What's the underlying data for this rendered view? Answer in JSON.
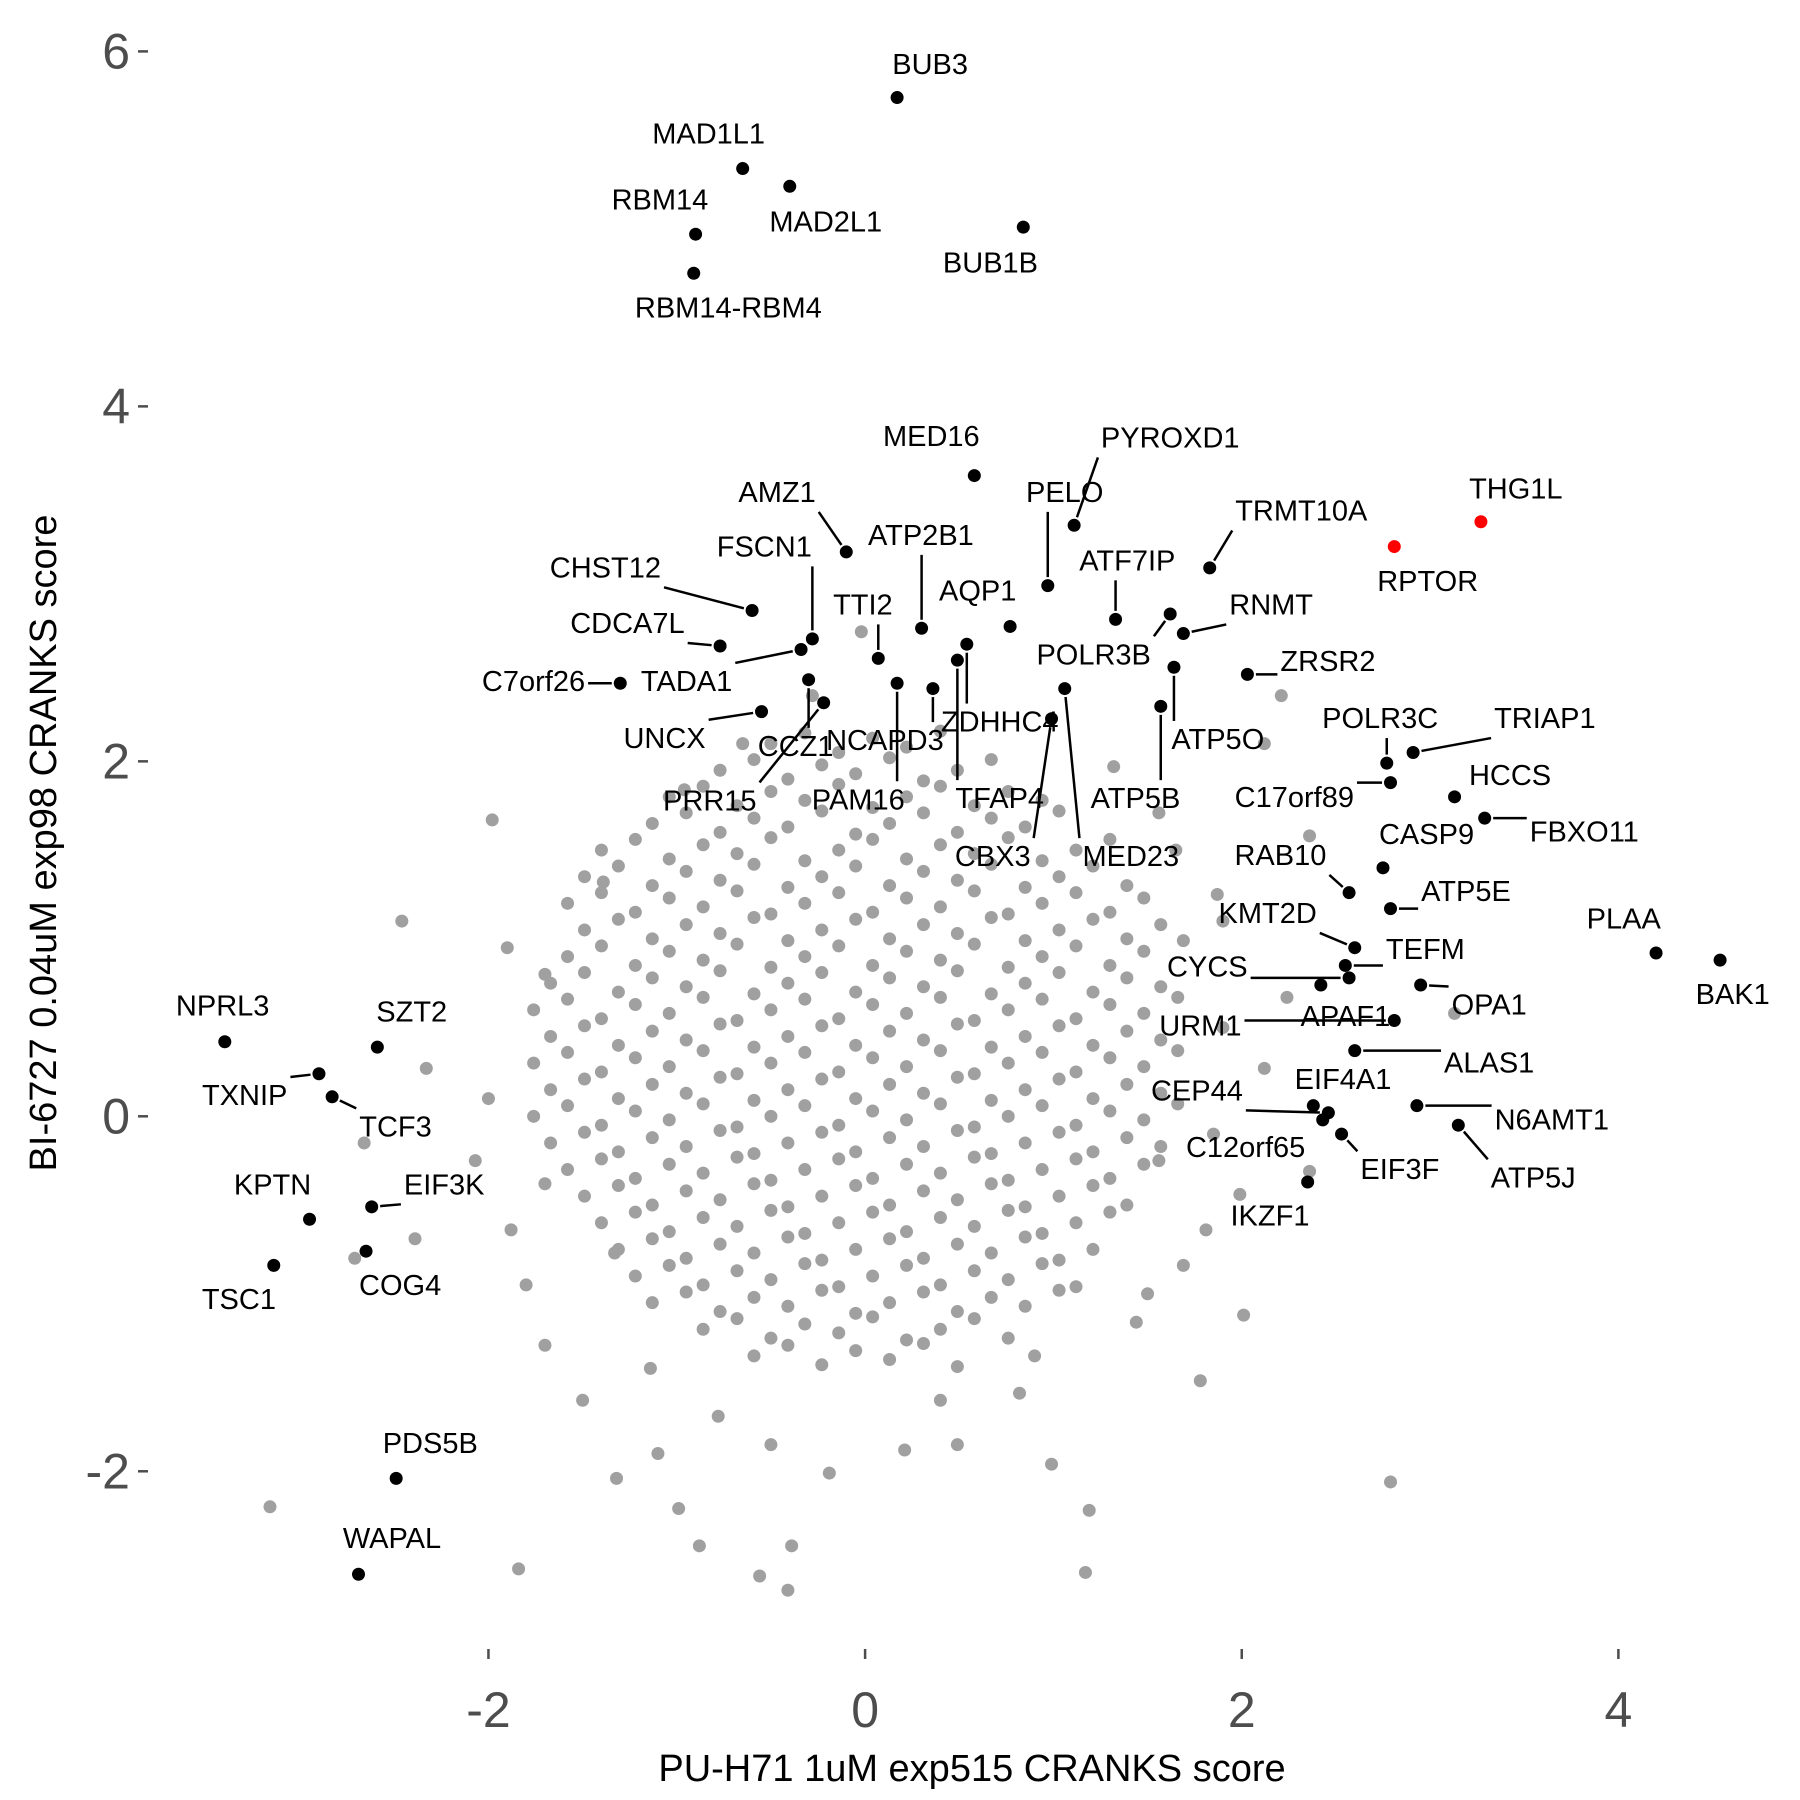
{
  "chart_data": {
    "type": "scatter",
    "x_label": "PU-H71 1uM exp515 CRANKS score",
    "y_label": "BI-6727 0.04uM exp98 CRANKS score",
    "xlim": [
      -3.76,
      4.89
    ],
    "ylim": [
      -2.99,
      6.16
    ],
    "xticks": [
      -2,
      0,
      2,
      4
    ],
    "yticks": [
      -2,
      0,
      2,
      4,
      6
    ],
    "grid": false,
    "series": [
      {
        "color": "#a0a0a0",
        "x": [
          -0.59,
          -0.41,
          -0.23,
          -0.05,
          0.13,
          0.31,
          0.49,
          -0.86,
          -0.68,
          -0.5,
          -0.32,
          -0.14,
          0.04,
          0.22,
          0.4,
          0.58,
          0.76,
          -1.13,
          -0.95,
          -0.77,
          -0.59,
          -0.41,
          -0.23,
          -0.05,
          0.13,
          0.31,
          0.49,
          0.67,
          0.85,
          1.03,
          -1.22,
          -1.04,
          -0.86,
          -0.68,
          -0.5,
          -0.32,
          -0.14,
          0.04,
          0.22,
          0.4,
          0.58,
          0.76,
          0.94,
          1.12,
          -1.31,
          -1.13,
          -0.95,
          -0.77,
          -0.59,
          -0.41,
          -0.23,
          -0.05,
          0.13,
          0.31,
          0.49,
          0.67,
          0.85,
          1.03,
          1.21,
          -1.4,
          -1.22,
          -1.04,
          -0.86,
          -0.68,
          -0.5,
          -0.32,
          -0.14,
          0.04,
          0.22,
          0.4,
          0.58,
          0.76,
          0.94,
          1.12,
          1.3,
          -1.49,
          -1.31,
          -1.13,
          -0.95,
          -0.77,
          -0.59,
          -0.41,
          -0.23,
          -0.05,
          0.13,
          0.31,
          0.49,
          0.67,
          0.85,
          1.03,
          1.21,
          1.39,
          -1.58,
          -1.4,
          -1.22,
          -1.04,
          -0.86,
          -0.68,
          -0.5,
          -0.32,
          -0.14,
          0.04,
          0.22,
          0.4,
          0.58,
          0.76,
          0.94,
          1.12,
          1.3,
          1.48,
          -1.67,
          -1.49,
          -1.31,
          -1.13,
          -0.95,
          -0.77,
          -0.59,
          -0.41,
          -0.23,
          -0.05,
          0.13,
          0.31,
          0.49,
          0.67,
          0.85,
          1.03,
          1.21,
          1.39,
          1.57,
          -1.76,
          -1.58,
          -1.4,
          -1.22,
          -1.04,
          -0.86,
          -0.68,
          -0.5,
          -0.32,
          -0.14,
          0.04,
          0.22,
          0.4,
          0.58,
          0.76,
          0.94,
          1.12,
          1.3,
          1.48,
          1.66,
          -1.67,
          -1.49,
          -1.31,
          -1.13,
          -0.95,
          -0.77,
          -0.59,
          -0.41,
          -0.23,
          -0.05,
          0.13,
          0.31,
          0.49,
          0.67,
          0.85,
          1.03,
          1.21,
          1.39,
          1.57,
          -1.76,
          -1.58,
          -1.4,
          -1.22,
          -1.04,
          -0.86,
          -0.68,
          -0.5,
          -0.32,
          -0.14,
          0.04,
          0.22,
          0.4,
          0.58,
          0.76,
          0.94,
          1.12,
          1.3,
          1.48,
          1.66,
          -1.67,
          -1.49,
          -1.31,
          -1.13,
          -0.95,
          -0.77,
          -0.59,
          -0.41,
          -0.23,
          -0.05,
          0.13,
          0.31,
          0.49,
          0.67,
          0.85,
          1.03,
          1.21,
          1.39,
          1.57,
          -1.76,
          -1.58,
          -1.4,
          -1.22,
          -1.04,
          -0.86,
          -0.68,
          -0.5,
          -0.32,
          -0.14,
          0.04,
          0.22,
          0.4,
          0.58,
          0.76,
          0.94,
          1.12,
          1.3,
          1.48,
          1.66,
          -1.67,
          -1.49,
          -1.31,
          -1.13,
          -0.95,
          -0.77,
          -0.59,
          -0.41,
          -0.23,
          -0.05,
          0.13,
          0.31,
          0.49,
          0.67,
          0.85,
          1.03,
          1.21,
          1.39,
          1.57,
          -1.58,
          -1.4,
          -1.22,
          -1.04,
          -0.86,
          -0.68,
          -0.5,
          -0.32,
          -0.14,
          0.04,
          0.22,
          0.4,
          0.58,
          0.76,
          0.94,
          1.12,
          1.3,
          1.48,
          -1.49,
          -1.31,
          -1.13,
          -0.95,
          -0.77,
          -0.59,
          -0.41,
          -0.23,
          -0.05,
          0.13,
          0.31,
          0.49,
          0.67,
          0.85,
          1.03,
          1.21,
          1.39,
          1.57,
          -1.58,
          -1.4,
          -1.22,
          -1.04,
          -0.86,
          -0.68,
          -0.5,
          -0.32,
          -0.14,
          0.04,
          0.22,
          0.4,
          0.58,
          0.76,
          0.94,
          1.12,
          1.3,
          1.48,
          -1.49,
          -1.31,
          -1.13,
          -0.95,
          -0.77,
          -0.59,
          -0.41,
          -0.23,
          -0.05,
          0.13,
          0.31,
          0.49,
          0.67,
          0.85,
          1.03,
          1.21,
          1.39,
          -1.4,
          -1.22,
          -1.04,
          -0.86,
          -0.68,
          -0.5,
          -0.32,
          -0.14,
          0.04,
          0.22,
          0.4,
          0.58,
          0.76,
          0.94,
          1.12,
          1.3,
          -1.13,
          -0.95,
          -0.77,
          -0.59,
          -0.41,
          -0.23,
          -0.05,
          0.13,
          0.31,
          0.49,
          0.67,
          0.85,
          1.03,
          -1.04,
          -0.86,
          -0.68,
          -0.5,
          -0.32,
          -0.14,
          0.04,
          0.22,
          0.4,
          0.58,
          0.76,
          0.94,
          -0.77,
          -0.59,
          -0.41,
          -0.23,
          -0.05,
          0.13,
          0.31,
          0.49,
          0.67,
          -0.5,
          -0.32,
          -0.14,
          0.04,
          0.22,
          0.4,
          -3.16,
          -1.98,
          -2.46,
          -2.33,
          -2.66,
          -2.71,
          -2.39,
          -1.84,
          -0.88,
          -0.56,
          -0.41,
          -0.39,
          -1.32,
          -0.99,
          -0.02,
          2.21,
          2.12,
          2.36,
          2.79,
          2.01,
          1.78,
          1.19,
          1.17,
          0.99,
          0.49,
          -0.19,
          3.13,
          1.87,
          1.69,
          1.99,
          1.81,
          1.44,
          -1.14,
          -1.7,
          -1.88,
          -2.07,
          -1.7,
          -1.39,
          -0.96,
          -0.65,
          -0.28,
          1.32,
          1.56,
          2.24,
          2.12,
          2.36,
          1.69,
          -0.78,
          0.21,
          0.82,
          -1.7,
          -1.33,
          1.56,
          -1.9,
          -2.0,
          -1.8,
          -1.5,
          -1.1,
          -0.5,
          0.4,
          0.9,
          1.5,
          1.85,
          1.9,
          1.9,
          1.65
        ],
        "y": [
          -1.35,
          -1.29,
          -1.4,
          -1.32,
          -1.37,
          -1.28,
          -1.41,
          -1.2,
          -1.14,
          -1.25,
          -1.17,
          -1.22,
          -1.13,
          -1.26,
          -1.2,
          -1.14,
          -1.25,
          -1.05,
          -0.99,
          -1.1,
          -1.02,
          -1.07,
          -0.98,
          -1.11,
          -1.05,
          -0.99,
          -1.1,
          -1.02,
          -1.07,
          -0.98,
          -0.9,
          -0.84,
          -0.95,
          -0.87,
          -0.92,
          -0.83,
          -0.96,
          -0.9,
          -0.84,
          -0.95,
          -0.87,
          -0.92,
          -0.83,
          -0.96,
          -0.75,
          -0.69,
          -0.8,
          -0.72,
          -0.77,
          -0.68,
          -0.81,
          -0.75,
          -0.69,
          -0.8,
          -0.72,
          -0.77,
          -0.68,
          -0.81,
          -0.75,
          -0.6,
          -0.54,
          -0.65,
          -0.57,
          -0.62,
          -0.53,
          -0.66,
          -0.6,
          -0.54,
          -0.65,
          -0.57,
          -0.62,
          -0.53,
          -0.66,
          -0.6,
          -0.54,
          -0.45,
          -0.39,
          -0.5,
          -0.42,
          -0.47,
          -0.38,
          -0.51,
          -0.45,
          -0.39,
          -0.5,
          -0.42,
          -0.47,
          -0.38,
          -0.51,
          -0.45,
          -0.39,
          -0.5,
          -0.3,
          -0.24,
          -0.35,
          -0.27,
          -0.32,
          -0.23,
          -0.36,
          -0.3,
          -0.24,
          -0.35,
          -0.27,
          -0.32,
          -0.23,
          -0.36,
          -0.3,
          -0.24,
          -0.35,
          -0.27,
          -0.15,
          -0.09,
          -0.2,
          -0.12,
          -0.17,
          -0.08,
          -0.21,
          -0.15,
          -0.09,
          -0.2,
          -0.12,
          -0.17,
          -0.08,
          -0.21,
          -0.15,
          -0.09,
          -0.2,
          -0.12,
          -0.17,
          0.0,
          0.06,
          -0.05,
          0.03,
          -0.02,
          0.07,
          -0.06,
          0.0,
          0.06,
          -0.05,
          0.03,
          -0.02,
          0.07,
          -0.06,
          0.0,
          0.06,
          -0.05,
          0.03,
          -0.02,
          0.07,
          0.15,
          0.21,
          0.1,
          0.18,
          0.13,
          0.22,
          0.09,
          0.15,
          0.21,
          0.1,
          0.18,
          0.13,
          0.22,
          0.09,
          0.15,
          0.21,
          0.1,
          0.18,
          0.13,
          0.3,
          0.36,
          0.25,
          0.33,
          0.28,
          0.37,
          0.24,
          0.3,
          0.36,
          0.25,
          0.33,
          0.28,
          0.37,
          0.24,
          0.3,
          0.36,
          0.25,
          0.33,
          0.28,
          0.37,
          0.45,
          0.51,
          0.4,
          0.48,
          0.43,
          0.52,
          0.39,
          0.45,
          0.51,
          0.4,
          0.48,
          0.43,
          0.52,
          0.39,
          0.45,
          0.51,
          0.4,
          0.48,
          0.43,
          0.6,
          0.66,
          0.55,
          0.63,
          0.58,
          0.67,
          0.54,
          0.6,
          0.66,
          0.55,
          0.63,
          0.58,
          0.67,
          0.54,
          0.6,
          0.66,
          0.55,
          0.63,
          0.58,
          0.67,
          0.75,
          0.81,
          0.7,
          0.78,
          0.73,
          0.82,
          0.69,
          0.75,
          0.81,
          0.7,
          0.78,
          0.73,
          0.82,
          0.69,
          0.75,
          0.81,
          0.7,
          0.78,
          0.73,
          0.9,
          0.96,
          0.85,
          0.93,
          0.88,
          0.97,
          0.84,
          0.9,
          0.96,
          0.85,
          0.93,
          0.88,
          0.97,
          0.84,
          0.9,
          0.96,
          0.85,
          0.93,
          1.05,
          1.11,
          1.0,
          1.08,
          1.03,
          1.12,
          0.99,
          1.05,
          1.11,
          1.0,
          1.08,
          1.03,
          1.12,
          0.99,
          1.05,
          1.11,
          1.0,
          1.08,
          1.2,
          1.26,
          1.15,
          1.23,
          1.18,
          1.27,
          1.14,
          1.2,
          1.26,
          1.15,
          1.23,
          1.18,
          1.27,
          1.14,
          1.2,
          1.26,
          1.15,
          1.23,
          1.35,
          1.41,
          1.3,
          1.38,
          1.33,
          1.42,
          1.29,
          1.35,
          1.41,
          1.3,
          1.38,
          1.33,
          1.42,
          1.29,
          1.35,
          1.41,
          1.3,
          1.5,
          1.56,
          1.45,
          1.53,
          1.48,
          1.57,
          1.44,
          1.5,
          1.56,
          1.45,
          1.53,
          1.48,
          1.57,
          1.44,
          1.5,
          1.56,
          1.65,
          1.71,
          1.6,
          1.68,
          1.63,
          1.72,
          1.59,
          1.65,
          1.71,
          1.6,
          1.68,
          1.63,
          1.72,
          1.8,
          1.86,
          1.75,
          1.83,
          1.78,
          1.87,
          1.74,
          1.8,
          1.86,
          1.75,
          1.83,
          1.78,
          1.95,
          2.01,
          1.9,
          1.98,
          1.93,
          2.02,
          1.89,
          1.95,
          2.01,
          2.1,
          2.16,
          2.05,
          2.13,
          2.08,
          2.17,
          -2.2,
          1.67,
          1.1,
          0.27,
          -0.15,
          -0.8,
          -0.69,
          -2.55,
          -2.42,
          -2.59,
          -2.67,
          -2.42,
          -2.04,
          -2.21,
          2.73,
          2.37,
          2.1,
          1.58,
          -2.06,
          -1.12,
          -1.49,
          -2.22,
          -2.57,
          -1.96,
          -1.85,
          -2.01,
          0.58,
          1.25,
          0.99,
          -0.44,
          -0.64,
          -1.16,
          -1.42,
          -1.29,
          -0.64,
          -0.25,
          0.8,
          1.32,
          1.84,
          2.1,
          2.37,
          1.97,
          1.71,
          0.67,
          0.27,
          -0.31,
          -0.84,
          -1.69,
          -1.88,
          -1.56,
          -0.38,
          -0.77,
          -0.25,
          0.95,
          0.1,
          -0.95,
          -1.6,
          -1.9,
          -1.85,
          -1.6,
          -1.35,
          -1.0,
          -0.1,
          0.5,
          1.1,
          1.5
        ]
      },
      {
        "color": "#000000",
        "labels": [
          "BUB3",
          "MAD1L1",
          "MAD2L1",
          "RBM14",
          "RBM14-RBM4",
          "BUB1B",
          "MED16",
          "PYROXD1",
          "PELO",
          "AMZ1",
          "ATP2B1",
          "ATF7IP",
          "TRMT10A",
          "RNMT",
          "POLR3B",
          "ZRSR2",
          "ATP5O",
          "ATP5B",
          "MED23",
          "AQP1",
          "ZDHHC4",
          "TFAP4",
          "CBX3",
          "TTI2",
          "NCAPD3",
          "PAM16",
          "FSCN1",
          "CHST12",
          "CDCA7L",
          "C7orf26",
          "TADA1",
          "UNCX",
          "CCZ1",
          "PRR15",
          "POLR3C",
          "TRIAP1",
          "C17orf89",
          "HCCS",
          "FBXO11",
          "CASP9",
          "RAB10",
          "ATP5E",
          "KMT2D",
          "TEFM",
          "CYCS",
          "APAF1",
          "OPA1",
          "URM1",
          "ALAS1",
          "EIF4A1",
          "CEP44",
          "N6AMT1",
          "ATP5J",
          "C12orf65",
          "EIF3F",
          "IKZF1",
          "PLAA",
          "BAK1",
          "NPRL3",
          "SZT2",
          "TXNIP",
          "TCF3",
          "KPTN",
          "EIF3K",
          "COG4",
          "TSC1",
          "PDS5B",
          "WAPAL"
        ],
        "x": [
          0.17,
          -0.65,
          -0.4,
          -0.9,
          -0.91,
          0.84,
          0.58,
          1.11,
          0.97,
          -0.1,
          0.3,
          1.33,
          1.83,
          1.69,
          1.62,
          2.03,
          1.64,
          1.57,
          1.06,
          0.77,
          0.54,
          0.49,
          0.99,
          0.07,
          0.36,
          0.17,
          -0.28,
          -0.6,
          -0.77,
          -1.3,
          -0.34,
          -0.55,
          -0.3,
          -0.22,
          2.77,
          2.91,
          2.79,
          3.13,
          3.29,
          2.75,
          2.57,
          2.79,
          2.6,
          2.55,
          2.57,
          2.42,
          2.95,
          2.81,
          2.6,
          2.38,
          2.46,
          2.93,
          3.15,
          2.43,
          2.53,
          2.35,
          4.2,
          4.54,
          -3.4,
          -2.59,
          -2.9,
          -2.83,
          -2.95,
          -2.62,
          -2.65,
          -3.14,
          -2.49,
          -2.69
        ],
        "y": [
          5.74,
          5.34,
          5.24,
          4.97,
          4.75,
          5.01,
          3.61,
          3.33,
          2.99,
          3.18,
          2.75,
          2.8,
          3.09,
          2.72,
          2.83,
          2.49,
          2.53,
          2.31,
          2.41,
          2.76,
          2.66,
          2.57,
          2.24,
          2.58,
          2.41,
          2.44,
          2.69,
          2.85,
          2.65,
          2.44,
          2.63,
          2.28,
          2.46,
          2.33,
          1.99,
          2.05,
          1.88,
          1.8,
          1.68,
          1.4,
          1.26,
          1.17,
          0.95,
          0.85,
          0.78,
          0.74,
          0.74,
          0.54,
          0.37,
          0.06,
          0.02,
          0.06,
          -0.05,
          -0.02,
          -0.1,
          -0.37,
          0.92,
          0.88,
          0.42,
          0.39,
          0.24,
          0.11,
          -0.58,
          -0.51,
          -0.76,
          -0.84,
          -2.04,
          -2.58
        ]
      },
      {
        "color": "#ff0000",
        "labels": [
          "RPTOR",
          "THG1L"
        ],
        "x": [
          2.81,
          3.27
        ],
        "y": [
          3.21,
          3.35
        ]
      }
    ]
  }
}
